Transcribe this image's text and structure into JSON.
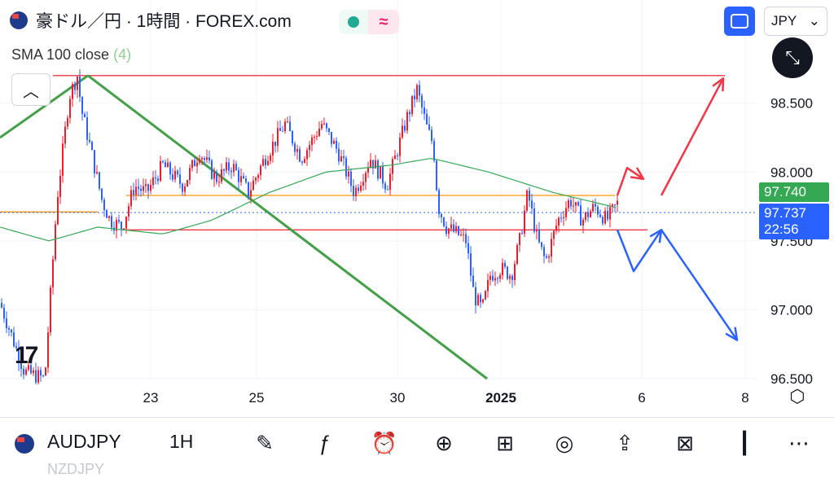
{
  "header": {
    "title": "豪ドル／円 · 1時間 · FOREX.com",
    "currency": "JPY",
    "status_icons": [
      "market-open-dot",
      "approx-icon"
    ]
  },
  "indicator": {
    "label": "SMA 100 close",
    "badge": "(4)"
  },
  "price_axis": {
    "labels": [
      "98.500",
      "98.000",
      "97.500",
      "97.000",
      "96.500"
    ],
    "last_price": "97.740",
    "current_price": "97.737",
    "countdown": "22:56"
  },
  "time_axis": {
    "labels": [
      "23",
      "25",
      "30",
      "2025",
      "6",
      "8"
    ]
  },
  "colors": {
    "up_candle": "#ef1c2e",
    "down_candle": "#2962ff",
    "sma": "#34a853",
    "trendline": "#43a047",
    "support": "#ff9800",
    "resistance": "#f23645",
    "bull_arrow": "#f23645",
    "bear_arrow": "#2962ff"
  },
  "bottom_bar": {
    "symbol": "AUDJPY",
    "interval": "1H",
    "ghost_symbol": "NZDJPY",
    "tools": [
      "pen-icon",
      "fx-icon",
      "alarm-icon",
      "plus-circle-icon",
      "grid-icon",
      "bulb-icon",
      "share-icon",
      "compare-icon",
      "candles-icon",
      "more-icon"
    ]
  },
  "chart_data": {
    "type": "candlestick",
    "ylim": [
      96.5,
      98.9
    ],
    "price_ticks": [
      98.5,
      98.0,
      97.5,
      97.0,
      96.5
    ],
    "anchors": [
      [
        0,
        97.05
      ],
      [
        30,
        96.55
      ],
      [
        55,
        96.5
      ],
      [
        70,
        97.8
      ],
      [
        85,
        98.55
      ],
      [
        95,
        98.7
      ],
      [
        100,
        98.45
      ],
      [
        110,
        98.2
      ],
      [
        125,
        97.8
      ],
      [
        135,
        97.65
      ],
      [
        150,
        97.6
      ],
      [
        165,
        97.9
      ],
      [
        180,
        97.85
      ],
      [
        200,
        98.05
      ],
      [
        225,
        97.9
      ],
      [
        245,
        98.15
      ],
      [
        265,
        97.95
      ],
      [
        285,
        98.05
      ],
      [
        305,
        97.85
      ],
      [
        325,
        98.1
      ],
      [
        350,
        98.35
      ],
      [
        370,
        98.1
      ],
      [
        395,
        98.35
      ],
      [
        415,
        98.15
      ],
      [
        435,
        97.85
      ],
      [
        455,
        98.1
      ],
      [
        475,
        97.9
      ],
      [
        500,
        98.4
      ],
      [
        512,
        98.6
      ],
      [
        525,
        98.3
      ],
      [
        532,
        98.2
      ],
      [
        538,
        97.75
      ],
      [
        548,
        97.6
      ],
      [
        562,
        97.55
      ],
      [
        572,
        97.5
      ],
      [
        582,
        97.1
      ],
      [
        592,
        97.0
      ],
      [
        602,
        97.25
      ],
      [
        615,
        97.3
      ],
      [
        628,
        97.25
      ],
      [
        638,
        97.5
      ],
      [
        648,
        97.85
      ],
      [
        660,
        97.5
      ],
      [
        670,
        97.35
      ],
      [
        685,
        97.65
      ],
      [
        700,
        97.8
      ],
      [
        715,
        97.65
      ],
      [
        730,
        97.75
      ],
      [
        745,
        97.65
      ],
      [
        758,
        97.77
      ]
    ],
    "sma": [
      [
        0,
        97.6
      ],
      [
        60,
        97.5
      ],
      [
        120,
        97.6
      ],
      [
        200,
        97.55
      ],
      [
        260,
        97.65
      ],
      [
        330,
        97.85
      ],
      [
        400,
        98.0
      ],
      [
        480,
        98.05
      ],
      [
        530,
        98.1
      ],
      [
        600,
        98.0
      ],
      [
        680,
        97.85
      ],
      [
        758,
        97.74
      ]
    ],
    "horizontal_lines": [
      {
        "price": 98.7,
        "x1": 65,
        "x2": 890,
        "color": "resistance"
      },
      {
        "price": 97.83,
        "x1": 155,
        "x2": 755,
        "color": "support"
      },
      {
        "price": 97.71,
        "x1": 0,
        "x2": 120,
        "color": "support"
      },
      {
        "price": 97.58,
        "x1": 150,
        "x2": 795,
        "color": "resistance"
      }
    ],
    "trendlines": [
      {
        "points": [
          [
            0,
            98.25
          ],
          [
            108,
            98.7
          ]
        ]
      },
      {
        "points": [
          [
            108,
            98.7
          ],
          [
            598,
            96.5
          ]
        ]
      }
    ],
    "arrows": [
      {
        "points": [
          [
            758,
            97.83
          ],
          [
            770,
            98.03
          ],
          [
            790,
            97.95
          ]
        ],
        "color": "bull_arrow"
      },
      {
        "points": [
          [
            812,
            97.83
          ],
          [
            888,
            98.68
          ]
        ],
        "color": "bull_arrow"
      },
      {
        "points": [
          [
            758,
            97.58
          ],
          [
            778,
            97.28
          ],
          [
            812,
            97.58
          ]
        ],
        "color": "bear_arrow"
      },
      {
        "points": [
          [
            812,
            97.58
          ],
          [
            905,
            96.78
          ]
        ],
        "color": "bear_arrow"
      }
    ]
  }
}
